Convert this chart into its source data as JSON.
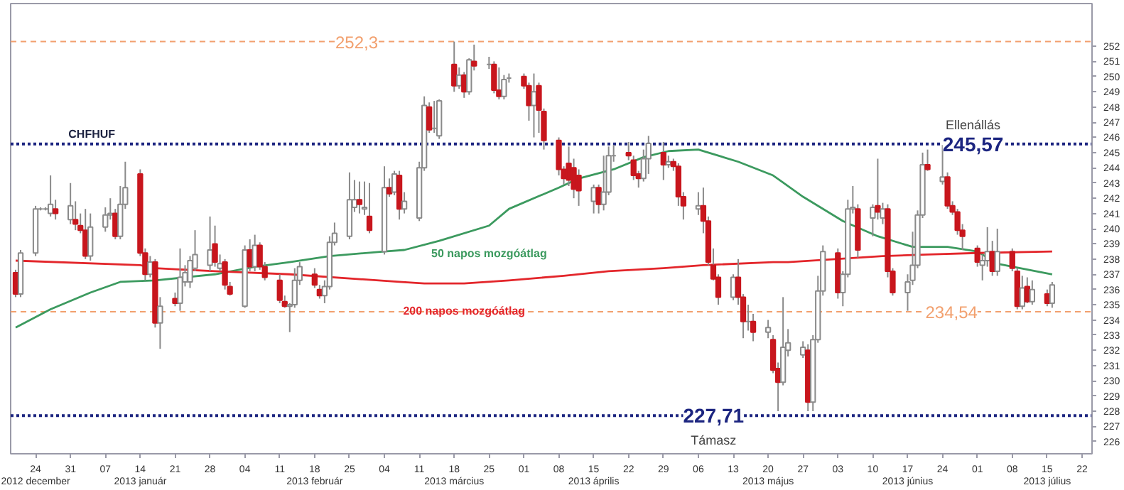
{
  "chart_data": {
    "type": "candlestick",
    "title": "CHFHUF",
    "x": [
      "2012-12-20",
      "2012-12-21",
      "2012-12-24",
      "2012-12-25",
      "2012-12-26",
      "2012-12-27",
      "2012-12-28",
      "2012-12-31",
      "2013-01-01",
      "2013-01-02",
      "2013-01-03",
      "2013-01-04",
      "2013-01-07",
      "2013-01-08",
      "2013-01-09",
      "2013-01-10",
      "2013-01-11",
      "2013-01-14",
      "2013-01-15",
      "2013-01-16",
      "2013-01-17",
      "2013-01-18",
      "2013-01-21",
      "2013-01-22",
      "2013-01-23",
      "2013-01-24",
      "2013-01-25",
      "2013-01-28",
      "2013-01-29",
      "2013-01-30",
      "2013-01-31",
      "2013-02-01",
      "2013-02-04",
      "2013-02-05",
      "2013-02-06",
      "2013-02-07",
      "2013-02-08",
      "2013-02-11",
      "2013-02-12",
      "2013-02-13",
      "2013-02-14",
      "2013-02-15",
      "2013-02-18",
      "2013-02-19",
      "2013-02-20",
      "2013-02-21",
      "2013-02-22",
      "2013-02-25",
      "2013-02-26",
      "2013-02-27",
      "2013-02-28",
      "2013-03-01",
      "2013-03-04",
      "2013-03-05",
      "2013-03-06",
      "2013-03-07",
      "2013-03-08",
      "2013-03-11",
      "2013-03-12",
      "2013-03-13",
      "2013-03-14",
      "2013-03-15",
      "2013-03-18",
      "2013-03-19",
      "2013-03-20",
      "2013-03-21",
      "2013-03-22",
      "2013-03-25",
      "2013-03-26",
      "2013-03-27",
      "2013-03-28",
      "2013-03-29",
      "2013-04-01",
      "2013-04-02",
      "2013-04-03",
      "2013-04-04",
      "2013-04-05",
      "2013-04-08",
      "2013-04-09",
      "2013-04-10",
      "2013-04-11",
      "2013-04-12",
      "2013-04-15",
      "2013-04-16",
      "2013-04-17",
      "2013-04-18",
      "2013-04-19",
      "2013-04-22",
      "2013-04-23",
      "2013-04-24",
      "2013-04-25",
      "2013-04-26",
      "2013-04-29",
      "2013-04-30",
      "2013-05-01",
      "2013-05-02",
      "2013-05-03",
      "2013-05-06",
      "2013-05-07",
      "2013-05-08",
      "2013-05-09",
      "2013-05-10",
      "2013-05-13",
      "2013-05-14",
      "2013-05-15",
      "2013-05-16",
      "2013-05-17",
      "2013-05-20",
      "2013-05-21",
      "2013-05-22",
      "2013-05-23",
      "2013-05-24",
      "2013-05-27",
      "2013-05-28",
      "2013-05-29",
      "2013-05-30",
      "2013-05-31",
      "2013-06-03",
      "2013-06-04",
      "2013-06-05",
      "2013-06-06",
      "2013-06-07",
      "2013-06-10",
      "2013-06-11",
      "2013-06-12",
      "2013-06-13",
      "2013-06-14",
      "2013-06-17",
      "2013-06-18",
      "2013-06-19",
      "2013-06-20",
      "2013-06-21",
      "2013-06-24",
      "2013-06-25",
      "2013-06-26",
      "2013-06-27",
      "2013-06-28",
      "2013-07-01",
      "2013-07-02",
      "2013-07-03",
      "2013-07-04",
      "2013-07-05",
      "2013-07-08",
      "2013-07-09",
      "2013-07-10",
      "2013-07-11",
      "2013-07-12",
      "2013-07-15",
      "2013-07-16"
    ],
    "ohlc": [
      [
        237.1,
        237.3,
        235.5,
        235.7
      ],
      [
        235.7,
        238.6,
        235.5,
        238.4
      ],
      [
        238.4,
        241.5,
        238.2,
        241.3
      ],
      [
        241.3,
        241.4,
        241.2,
        241.3
      ],
      [
        241.3,
        241.4,
        241.2,
        241.3
      ],
      [
        241.0,
        243.5,
        240.8,
        241.6
      ],
      [
        241.3,
        241.9,
        240.6,
        241.0
      ],
      [
        240.6,
        243.0,
        240.3,
        241.5
      ],
      [
        240.6,
        241.8,
        239.9,
        240.3
      ],
      [
        240.2,
        241.0,
        239.7,
        239.9
      ],
      [
        239.9,
        241.3,
        238.0,
        238.2
      ],
      [
        238.2,
        241.0,
        237.9,
        240.1
      ],
      [
        240.1,
        241.4,
        239.8,
        240.9
      ],
      [
        240.9,
        242.0,
        240.6,
        241.0
      ],
      [
        241.0,
        241.3,
        239.3,
        239.5
      ],
      [
        239.5,
        242.8,
        239.3,
        241.6
      ],
      [
        241.6,
        244.4,
        241.3,
        242.7
      ],
      [
        243.6,
        243.9,
        238.2,
        238.4
      ],
      [
        238.4,
        238.7,
        236.6,
        237.0
      ],
      [
        237.0,
        238.2,
        236.8,
        237.8
      ],
      [
        237.8,
        238.0,
        233.5,
        233.8
      ],
      [
        233.8,
        235.5,
        232.1,
        234.9
      ],
      [
        235.4,
        235.8,
        234.9,
        235.1
      ],
      [
        235.1,
        238.7,
        234.6,
        236.8
      ],
      [
        236.5,
        237.6,
        236.2,
        237.1
      ],
      [
        236.5,
        238.2,
        236.1,
        237.9
      ],
      [
        237.4,
        239.9,
        237.2,
        238.3
      ],
      [
        237.6,
        240.8,
        237.2,
        238.6
      ],
      [
        239.0,
        240.2,
        237.5,
        237.8
      ],
      [
        237.4,
        238.3,
        237.2,
        237.7
      ],
      [
        237.8,
        238.0,
        236.0,
        236.3
      ],
      [
        236.2,
        236.5,
        235.6,
        235.7
      ],
      [
        234.9,
        238.9,
        234.8,
        238.6
      ],
      [
        238.6,
        239.3,
        237.2,
        237.5
      ],
      [
        237.5,
        239.6,
        237.2,
        238.9
      ],
      [
        238.9,
        239.1,
        237.3,
        237.5
      ],
      [
        237.5,
        237.8,
        236.6,
        236.8
      ],
      [
        236.6,
        237.0,
        235.1,
        235.3
      ],
      [
        235.2,
        235.6,
        234.8,
        234.9
      ],
      [
        234.9,
        235.1,
        233.2,
        235.0
      ],
      [
        235.0,
        237.4,
        234.8,
        236.6
      ],
      [
        236.6,
        237.8,
        236.3,
        237.5
      ],
      [
        237.0,
        237.4,
        236.1,
        236.3
      ],
      [
        236.0,
        236.3,
        235.4,
        235.6
      ],
      [
        235.6,
        236.6,
        235.1,
        236.2
      ],
      [
        236.2,
        239.5,
        236.0,
        239.1
      ],
      [
        239.1,
        240.4,
        238.9,
        239.7
      ],
      [
        239.5,
        243.7,
        239.3,
        241.9
      ],
      [
        241.4,
        243.2,
        241.1,
        241.9
      ],
      [
        241.9,
        243.1,
        241.0,
        241.6
      ],
      [
        241.3,
        243.1,
        240.9,
        241.4
      ],
      [
        240.8,
        243.0,
        239.7,
        239.9
      ],
      [
        238.5,
        244.1,
        238.3,
        242.7
      ],
      [
        242.7,
        243.3,
        242.1,
        242.3
      ],
      [
        242.4,
        243.8,
        242.2,
        243.6
      ],
      [
        243.5,
        243.8,
        240.6,
        241.3
      ],
      [
        241.3,
        242.4,
        241.0,
        241.8
      ],
      [
        240.7,
        244.4,
        240.5,
        244.0
      ],
      [
        244.0,
        248.7,
        243.8,
        248.1
      ],
      [
        248.0,
        248.3,
        246.3,
        246.5
      ],
      [
        246.6,
        248.4,
        246.3,
        246.6
      ],
      [
        246.1,
        248.5,
        245.9,
        248.4
      ],
      [
        250.8,
        252.3,
        249.0,
        249.4
      ],
      [
        249.4,
        250.6,
        249.2,
        250.1
      ],
      [
        250.1,
        250.3,
        248.6,
        249.0
      ],
      [
        249.0,
        251.2,
        248.8,
        251.1
      ],
      [
        251.0,
        252.1,
        250.4,
        250.7
      ],
      [
        250.8,
        251.3,
        250.5,
        250.8
      ],
      [
        250.8,
        251.0,
        248.9,
        249.1
      ],
      [
        249.1,
        250.6,
        248.5,
        248.7
      ],
      [
        248.7,
        250.1,
        248.5,
        249.8
      ],
      [
        249.9,
        250.2,
        249.6,
        249.9
      ],
      [
        250.0,
        250.2,
        249.2,
        249.4
      ],
      [
        249.4,
        249.6,
        247.1,
        248.1
      ],
      [
        248.1,
        250.2,
        246.0,
        249.0
      ],
      [
        249.4,
        249.6,
        246.3,
        247.8
      ],
      [
        247.7,
        247.9,
        245.2,
        245.8
      ],
      [
        245.8,
        246.0,
        243.5,
        243.9
      ],
      [
        243.9,
        244.1,
        242.9,
        243.3
      ],
      [
        244.3,
        245.4,
        242.8,
        243.2
      ],
      [
        244.0,
        244.6,
        242.0,
        242.6
      ],
      [
        243.5,
        243.9,
        241.5,
        242.5
      ],
      [
        241.8,
        242.9,
        241.0,
        242.7
      ],
      [
        242.7,
        242.9,
        241.0,
        241.6
      ],
      [
        241.6,
        244.8,
        241.2,
        242.4
      ],
      [
        242.4,
        245.4,
        242.2,
        244.8
      ],
      [
        244.8,
        245.5,
        244.4,
        244.8
      ],
      [
        245.0,
        245.7,
        244.5,
        244.8
      ],
      [
        244.5,
        244.8,
        243.2,
        243.5
      ],
      [
        243.6,
        243.8,
        242.7,
        243.3
      ],
      [
        243.3,
        245.2,
        243.1,
        244.6
      ],
      [
        244.6,
        246.1,
        243.6,
        245.6
      ],
      [
        245.0,
        245.7,
        243.2,
        244.2
      ],
      [
        244.2,
        244.8,
        244.0,
        244.4
      ],
      [
        244.4,
        244.6,
        243.8,
        244.1
      ],
      [
        244.1,
        244.3,
        241.5,
        242.1
      ],
      [
        242.1,
        242.4,
        240.6,
        241.5
      ],
      [
        241.3,
        242.4,
        240.9,
        241.5
      ],
      [
        241.5,
        242.7,
        239.7,
        240.5
      ],
      [
        240.5,
        240.8,
        237.6,
        237.8
      ],
      [
        237.6,
        238.7,
        236.6,
        236.7
      ],
      [
        236.8,
        237.0,
        235.0,
        235.5
      ],
      [
        235.5,
        237.0,
        235.3,
        236.8
      ],
      [
        236.8,
        238.0,
        235.0,
        235.5
      ],
      [
        235.5,
        235.7,
        232.8,
        233.9
      ],
      [
        233.9,
        235.0,
        233.3,
        233.9
      ],
      [
        233.9,
        234.4,
        232.6,
        233.2
      ],
      [
        233.2,
        234.0,
        232.8,
        233.5
      ],
      [
        232.7,
        233.0,
        230.5,
        230.7
      ],
      [
        230.8,
        231.2,
        228.0,
        229.9
      ],
      [
        229.9,
        235.5,
        229.7,
        232.2
      ],
      [
        232.0,
        233.4,
        231.6,
        232.5
      ],
      [
        231.7,
        232.6,
        231.5,
        232.2
      ],
      [
        232.0,
        232.4,
        228.0,
        228.6
      ],
      [
        228.6,
        233.0,
        228.0,
        232.7
      ],
      [
        232.7,
        236.9,
        232.5,
        235.9
      ],
      [
        235.9,
        238.9,
        235.6,
        238.5
      ],
      [
        238.4,
        238.7,
        235.4,
        235.8
      ],
      [
        235.8,
        237.2,
        234.9,
        237.0
      ],
      [
        237.0,
        241.9,
        236.8,
        241.3
      ],
      [
        241.3,
        242.8,
        241.0,
        241.4
      ],
      [
        241.3,
        241.6,
        238.1,
        238.6
      ],
      [
        240.7,
        241.6,
        239.5,
        241.4
      ],
      [
        241.5,
        244.6,
        240.6,
        241.1
      ],
      [
        240.7,
        241.7,
        240.3,
        241.3
      ],
      [
        241.3,
        241.6,
        236.8,
        237.2
      ],
      [
        237.2,
        237.4,
        235.6,
        235.8
      ],
      [
        235.8,
        237.0,
        234.6,
        236.5
      ],
      [
        236.6,
        239.8,
        236.3,
        237.6
      ],
      [
        237.6,
        241.2,
        237.4,
        240.9
      ],
      [
        240.9,
        245.0,
        240.7,
        244.2
      ],
      [
        244.2,
        245.2,
        243.8,
        243.9
      ],
      [
        243.1,
        245.5,
        242.9,
        243.4
      ],
      [
        243.4,
        243.7,
        241.3,
        241.5
      ],
      [
        241.5,
        241.8,
        240.9,
        241.1
      ],
      [
        241.1,
        241.3,
        239.6,
        239.9
      ],
      [
        239.9,
        240.3,
        238.6,
        239.5
      ],
      [
        238.7,
        238.9,
        237.5,
        237.8
      ],
      [
        237.6,
        238.3,
        236.6,
        237.9
      ],
      [
        237.9,
        240.1,
        237.5,
        238.5
      ],
      [
        238.5,
        239.2,
        236.9,
        237.2
      ],
      [
        237.2,
        240.0,
        236.9,
        238.5
      ],
      [
        238.5,
        238.7,
        237.2,
        237.4
      ],
      [
        237.2,
        237.4,
        234.7,
        234.9
      ],
      [
        234.9,
        236.9,
        234.7,
        236.1
      ],
      [
        236.2,
        236.8,
        235.1,
        235.2
      ],
      [
        235.2,
        236.6,
        235.0,
        236.0
      ],
      [
        235.7,
        236.0,
        234.9,
        235.1
      ],
      [
        235.1,
        236.5,
        234.8,
        236.3
      ]
    ],
    "colors": [
      "#c8161d",
      "#ffffff",
      "#ffffff",
      "#8a8a8a",
      "#8a8a8a",
      "#ffffff",
      "#c8161d",
      "#ffffff",
      "#c8161d",
      "#c8161d",
      "#c8161d",
      "#ffffff",
      "#ffffff",
      "#ffffff",
      "#c8161d",
      "#ffffff",
      "#ffffff",
      "#c8161d",
      "#c8161d",
      "#ffffff",
      "#c8161d",
      "#ffffff",
      "#c8161d",
      "#ffffff",
      "#ffffff",
      "#ffffff",
      "#ffffff",
      "#ffffff",
      "#c8161d",
      "#ffffff",
      "#c8161d",
      "#c8161d",
      "#ffffff",
      "#c8161d",
      "#ffffff",
      "#c8161d",
      "#c8161d",
      "#c8161d",
      "#c8161d",
      "#ffffff",
      "#ffffff",
      "#ffffff",
      "#c8161d",
      "#c8161d",
      "#ffffff",
      "#ffffff",
      "#ffffff",
      "#ffffff",
      "#ffffff",
      "#c8161d",
      "#ffffff",
      "#c8161d",
      "#ffffff",
      "#c8161d",
      "#ffffff",
      "#c8161d",
      "#ffffff",
      "#ffffff",
      "#ffffff",
      "#c8161d",
      "#8a8a8a",
      "#ffffff",
      "#c8161d",
      "#ffffff",
      "#c8161d",
      "#ffffff",
      "#c8161d",
      "#8a8a8a",
      "#c8161d",
      "#c8161d",
      "#ffffff",
      "#8a8a8a",
      "#c8161d",
      "#c8161d",
      "#ffffff",
      "#c8161d",
      "#c8161d",
      "#c8161d",
      "#c8161d",
      "#c8161d",
      "#c8161d",
      "#c8161d",
      "#ffffff",
      "#c8161d",
      "#ffffff",
      "#ffffff",
      "#8a8a8a",
      "#c8161d",
      "#c8161d",
      "#c8161d",
      "#ffffff",
      "#ffffff",
      "#c8161d",
      "#ffffff",
      "#c8161d",
      "#c8161d",
      "#c8161d",
      "#ffffff",
      "#c8161d",
      "#c8161d",
      "#c8161d",
      "#c8161d",
      "#ffffff",
      "#c8161d",
      "#c8161d",
      "#8a8a8a",
      "#c8161d",
      "#ffffff",
      "#c8161d",
      "#c8161d",
      "#ffffff",
      "#ffffff",
      "#ffffff",
      "#c8161d",
      "#ffffff",
      "#ffffff",
      "#ffffff",
      "#c8161d",
      "#ffffff",
      "#ffffff",
      "#ffffff",
      "#c8161d",
      "#ffffff",
      "#c8161d",
      "#ffffff",
      "#c8161d",
      "#c8161d",
      "#ffffff",
      "#ffffff",
      "#ffffff",
      "#ffffff",
      "#c8161d",
      "#ffffff",
      "#c8161d",
      "#c8161d",
      "#c8161d",
      "#c8161d",
      "#c8161d",
      "#ffffff",
      "#ffffff",
      "#c8161d",
      "#ffffff",
      "#c8161d",
      "#c8161d",
      "#ffffff",
      "#c8161d",
      "#ffffff",
      "#c8161d",
      "#ffffff"
    ],
    "series": [
      {
        "type": "line",
        "name": "50 napos mozgóátlag",
        "color": "#3c9a5f",
        "x": [
          "2012-12-20",
          "2012-12-27",
          "2013-01-04",
          "2013-01-10",
          "2013-01-17",
          "2013-01-29",
          "2013-02-06",
          "2013-02-13",
          "2013-02-21",
          "2013-03-04",
          "2013-03-08",
          "2013-03-15",
          "2013-03-25",
          "2013-03-29",
          "2013-04-08",
          "2013-04-12",
          "2013-04-19",
          "2013-04-25",
          "2013-04-30",
          "2013-05-06",
          "2013-05-14",
          "2013-05-21",
          "2013-05-27",
          "2013-06-04",
          "2013-06-11",
          "2013-06-18",
          "2013-06-25",
          "2013-07-01",
          "2013-07-05",
          "2013-07-16"
        ],
        "values": [
          233.5,
          234.7,
          235.8,
          236.5,
          236.6,
          237.0,
          237.5,
          237.8,
          238.2,
          238.5,
          238.6,
          239.2,
          240.2,
          241.3,
          242.7,
          243.3,
          243.9,
          244.7,
          245.1,
          245.2,
          244.4,
          243.5,
          242.1,
          240.5,
          239.5,
          238.8,
          238.8,
          238.5,
          237.7,
          237.0
        ]
      },
      {
        "type": "line",
        "name": "200 napos mozgóátlag",
        "color": "#e3262b",
        "x": [
          "2012-12-20",
          "2013-01-14",
          "2013-01-17",
          "2013-01-29",
          "2013-02-13",
          "2013-03-07",
          "2013-03-12",
          "2013-03-20",
          "2013-03-29",
          "2013-04-09",
          "2013-04-18",
          "2013-04-29",
          "2013-05-07",
          "2013-05-21",
          "2013-05-24",
          "2013-06-12",
          "2013-06-21",
          "2013-07-01",
          "2013-07-16"
        ],
        "values": [
          237.9,
          237.6,
          237.4,
          237.2,
          237.0,
          236.5,
          236.4,
          236.4,
          236.6,
          236.9,
          237.2,
          237.4,
          237.6,
          237.8,
          237.8,
          238.2,
          238.3,
          238.4,
          238.5
        ]
      }
    ],
    "xlim": [
      "2012-12-19",
      "2013-07-24"
    ],
    "xticks": [
      {
        "value": "2012-12-24",
        "label": "24\n2012 december"
      },
      {
        "value": "2012-12-31",
        "label": "31"
      },
      {
        "value": "2013-01-07",
        "label": "07"
      },
      {
        "value": "2013-01-14",
        "label": "14\n2013 január"
      },
      {
        "value": "2013-01-21",
        "label": "21"
      },
      {
        "value": "2013-01-28",
        "label": "28"
      },
      {
        "value": "2013-02-04",
        "label": "04"
      },
      {
        "value": "2013-02-11",
        "label": "11"
      },
      {
        "value": "2013-02-18",
        "label": "18\n2013 február"
      },
      {
        "value": "2013-02-25",
        "label": "25"
      },
      {
        "value": "2013-03-04",
        "label": "04"
      },
      {
        "value": "2013-03-11",
        "label": "11"
      },
      {
        "value": "2013-03-18",
        "label": "18\n2013 március"
      },
      {
        "value": "2013-03-25",
        "label": "25"
      },
      {
        "value": "2013-04-01",
        "label": "01"
      },
      {
        "value": "2013-04-08",
        "label": "08"
      },
      {
        "value": "2013-04-15",
        "label": "15\n2013 április"
      },
      {
        "value": "2013-04-22",
        "label": "22"
      },
      {
        "value": "2013-04-29",
        "label": "29"
      },
      {
        "value": "2013-05-06",
        "label": "06"
      },
      {
        "value": "2013-05-13",
        "label": "13"
      },
      {
        "value": "2013-05-20",
        "label": "20\n2013 május"
      },
      {
        "value": "2013-05-27",
        "label": "27"
      },
      {
        "value": "2013-06-03",
        "label": "03"
      },
      {
        "value": "2013-06-10",
        "label": "10"
      },
      {
        "value": "2013-06-17",
        "label": "17\n2013 június"
      },
      {
        "value": "2013-06-24",
        "label": "24"
      },
      {
        "value": "2013-07-01",
        "label": "01"
      },
      {
        "value": "2013-07-08",
        "label": "08"
      },
      {
        "value": "2013-07-15",
        "label": "15\n2013 július"
      },
      {
        "value": "2013-07-22",
        "label": "22"
      }
    ],
    "ylim": [
      225.2,
      254.8
    ],
    "yticks": [
      226,
      227,
      228,
      229,
      230,
      231,
      232,
      233,
      234,
      235,
      236,
      237,
      238,
      239,
      240,
      241,
      242,
      243,
      244,
      245,
      246,
      247,
      248,
      249,
      250,
      251,
      252
    ],
    "ref_lines": [
      {
        "axis": "y",
        "value": 252.3,
        "label": "252,3",
        "color": "#f2a06e",
        "line_style": "dashed"
      },
      {
        "axis": "y",
        "value": 245.57,
        "label": "245,57",
        "color": "#1c2580",
        "line_style": "dotted"
      },
      {
        "axis": "y",
        "value": 234.54,
        "label": "234,54",
        "color": "#f2a06e",
        "line_style": "dashed"
      },
      {
        "axis": "y",
        "value": 227.71,
        "label": "227,71",
        "color": "#1c2580",
        "line_style": "dotted"
      }
    ],
    "annotations": [
      "Ellenállás",
      "Támasz"
    ]
  }
}
